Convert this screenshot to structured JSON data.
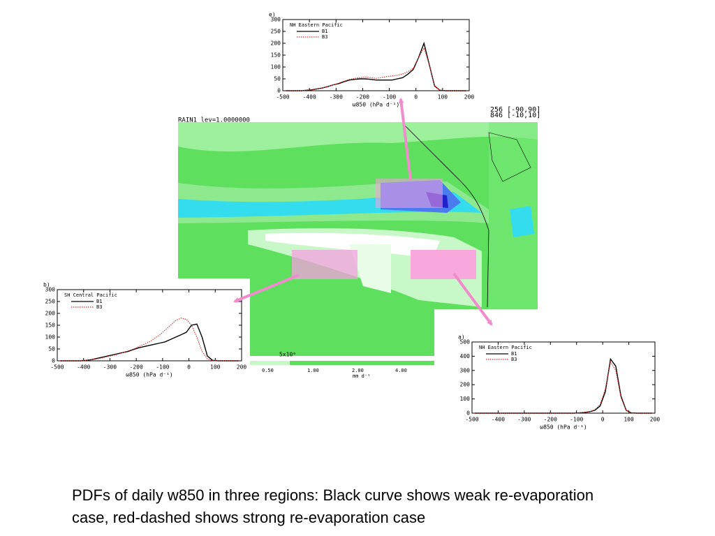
{
  "chart_data": [
    {
      "type": "line",
      "panel": "e)",
      "title": "NH Eastern Pacific",
      "xlabel": "ω850 (hPa d⁻¹)",
      "x": [
        -490,
        -470,
        -450,
        -430,
        -410,
        -390,
        -370,
        -350,
        -330,
        -310,
        -290,
        -270,
        -250,
        -230,
        -210,
        -190,
        -170,
        -150,
        -130,
        -110,
        -90,
        -70,
        -50,
        -30,
        -10,
        10,
        30,
        50,
        70,
        90,
        110,
        130,
        150,
        170,
        190
      ],
      "series": [
        {
          "name": "B1",
          "color": "#000000",
          "style": "solid",
          "values": [
            0,
            0,
            0,
            0,
            2,
            4,
            8,
            12,
            18,
            25,
            30,
            38,
            45,
            48,
            50,
            50,
            48,
            45,
            45,
            45,
            45,
            50,
            55,
            70,
            90,
            140,
            200,
            110,
            20,
            2,
            0,
            0,
            0,
            0,
            0
          ]
        },
        {
          "name": "B3",
          "color": "#e03030",
          "style": "dotted",
          "values": [
            0,
            0,
            0,
            0,
            2,
            4,
            8,
            12,
            18,
            25,
            32,
            40,
            48,
            52,
            55,
            58,
            55,
            52,
            55,
            60,
            62,
            65,
            70,
            80,
            95,
            140,
            180,
            110,
            22,
            2,
            0,
            0,
            0,
            0,
            0
          ]
        }
      ],
      "xlim": [
        -500,
        200
      ],
      "xticks": [
        -500,
        -400,
        -300,
        -200,
        -100,
        0,
        100,
        200
      ],
      "ylim": [
        0,
        300
      ],
      "yticks": [
        0,
        50,
        100,
        150,
        200,
        250,
        300
      ]
    },
    {
      "type": "line",
      "panel": "b)",
      "title": "SH Central Pacific",
      "xlabel": "ω850 (hPa d⁻¹)",
      "x": [
        -490,
        -470,
        -450,
        -430,
        -410,
        -390,
        -370,
        -350,
        -330,
        -310,
        -290,
        -270,
        -250,
        -230,
        -210,
        -190,
        -170,
        -150,
        -130,
        -110,
        -90,
        -70,
        -50,
        -30,
        -10,
        10,
        30,
        50,
        70,
        90,
        110,
        130,
        150,
        170,
        190
      ],
      "series": [
        {
          "name": "B1",
          "color": "#000000",
          "style": "solid",
          "values": [
            0,
            0,
            0,
            0,
            0,
            2,
            5,
            10,
            15,
            20,
            25,
            30,
            35,
            40,
            48,
            55,
            60,
            65,
            70,
            75,
            80,
            90,
            100,
            110,
            120,
            150,
            155,
            100,
            20,
            2,
            0,
            0,
            0,
            0,
            0
          ]
        },
        {
          "name": "B3",
          "color": "#e03030",
          "style": "dotted",
          "values": [
            0,
            0,
            0,
            0,
            0,
            2,
            5,
            8,
            12,
            18,
            22,
            28,
            35,
            42,
            50,
            60,
            70,
            80,
            95,
            110,
            130,
            150,
            170,
            180,
            175,
            150,
            100,
            40,
            8,
            1,
            0,
            0,
            0,
            0,
            0
          ]
        }
      ],
      "xlim": [
        -500,
        200
      ],
      "xticks": [
        -500,
        -400,
        -300,
        -200,
        -100,
        0,
        100,
        200
      ],
      "ylim": [
        0,
        300
      ],
      "yticks": [
        0,
        50,
        100,
        150,
        200,
        250,
        300
      ]
    },
    {
      "type": "line",
      "panel": "a)",
      "title": "NH Eastern Pacific",
      "xlabel": "ω850 (hPa d⁻¹)",
      "x": [
        -490,
        -470,
        -450,
        -430,
        -410,
        -390,
        -370,
        -350,
        -330,
        -310,
        -290,
        -270,
        -250,
        -230,
        -210,
        -190,
        -170,
        -150,
        -130,
        -110,
        -90,
        -70,
        -50,
        -30,
        -10,
        10,
        30,
        50,
        70,
        90,
        110,
        130,
        150,
        170,
        190
      ],
      "series": [
        {
          "name": "B1",
          "color": "#000000",
          "style": "solid",
          "values": [
            0,
            0,
            0,
            0,
            0,
            0,
            0,
            0,
            0,
            0,
            0,
            0,
            0,
            0,
            0,
            0,
            0,
            0,
            0,
            0,
            2,
            5,
            10,
            20,
            50,
            150,
            380,
            330,
            120,
            20,
            2,
            0,
            0,
            0,
            0
          ]
        },
        {
          "name": "B3",
          "color": "#e03030",
          "style": "dotted",
          "values": [
            0,
            0,
            0,
            0,
            0,
            0,
            0,
            0,
            0,
            0,
            0,
            0,
            0,
            0,
            0,
            0,
            0,
            0,
            0,
            0,
            2,
            5,
            12,
            25,
            60,
            170,
            360,
            300,
            110,
            18,
            2,
            0,
            0,
            0,
            0
          ]
        }
      ],
      "xlim": [
        -500,
        200
      ],
      "xticks": [
        -500,
        -400,
        -300,
        -200,
        -100,
        0,
        100,
        200
      ],
      "ylim": [
        0,
        500
      ],
      "yticks": [
        0,
        100,
        200,
        300,
        400,
        500
      ]
    }
  ],
  "map": {
    "label": "RAIN1 lev=1.0000000",
    "corner_text": [
      "256 [-90,90]",
      "846 [-10,10]"
    ],
    "scale": "5x10⁶",
    "colorbar_labels": [
      "0.50",
      "1.00",
      "2.00",
      "4.00"
    ],
    "colorbar_unit": "mm d⁻¹"
  },
  "caption": "PDFs of daily w850 in three regions: Black curve shows weak re-evaporation case, red-dashed shows strong re-evaporation case"
}
